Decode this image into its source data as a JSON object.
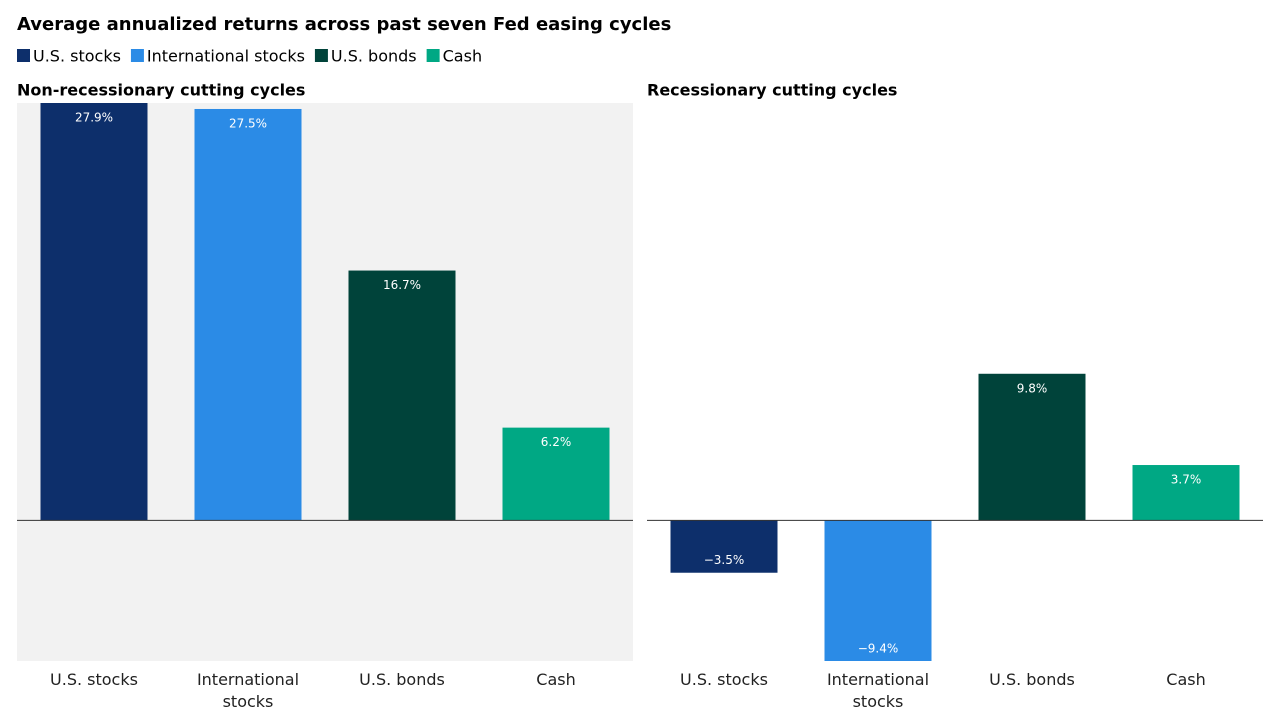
{
  "title": "Average annualized returns across past seven Fed easing cycles",
  "legend": [
    {
      "name": "U.S. stocks",
      "color": "#0d2f6b"
    },
    {
      "name": "International stocks",
      "color": "#2b8be6"
    },
    {
      "name": "U.S. bonds",
      "color": "#00433a"
    },
    {
      "name": "Cash",
      "color": "#00a884"
    }
  ],
  "chart_data": [
    {
      "type": "bar",
      "title": "Non-recessionary cutting cycles",
      "categories": [
        "U.S. stocks",
        "International stocks",
        "U.S. bonds",
        "Cash"
      ],
      "values": [
        27.9,
        27.5,
        16.7,
        6.2
      ],
      "value_labels": [
        "27.9%",
        "27.5%",
        "16.7%",
        "6.2%"
      ],
      "colors": [
        "#0d2f6b",
        "#2b8be6",
        "#00433a",
        "#00a884"
      ],
      "background": "#f2f2f2",
      "ylim": [
        -9.4,
        27.9
      ]
    },
    {
      "type": "bar",
      "title": "Recessionary cutting cycles",
      "categories": [
        "U.S. stocks",
        "International stocks",
        "U.S. bonds",
        "Cash"
      ],
      "values": [
        -3.5,
        -9.4,
        9.8,
        3.7
      ],
      "value_labels": [
        "−3.5%",
        "−9.4%",
        "9.8%",
        "3.7%"
      ],
      "colors": [
        "#0d2f6b",
        "#2b8be6",
        "#00433a",
        "#00a884"
      ],
      "background": "#ffffff",
      "ylim": [
        -9.4,
        27.9
      ]
    }
  ]
}
